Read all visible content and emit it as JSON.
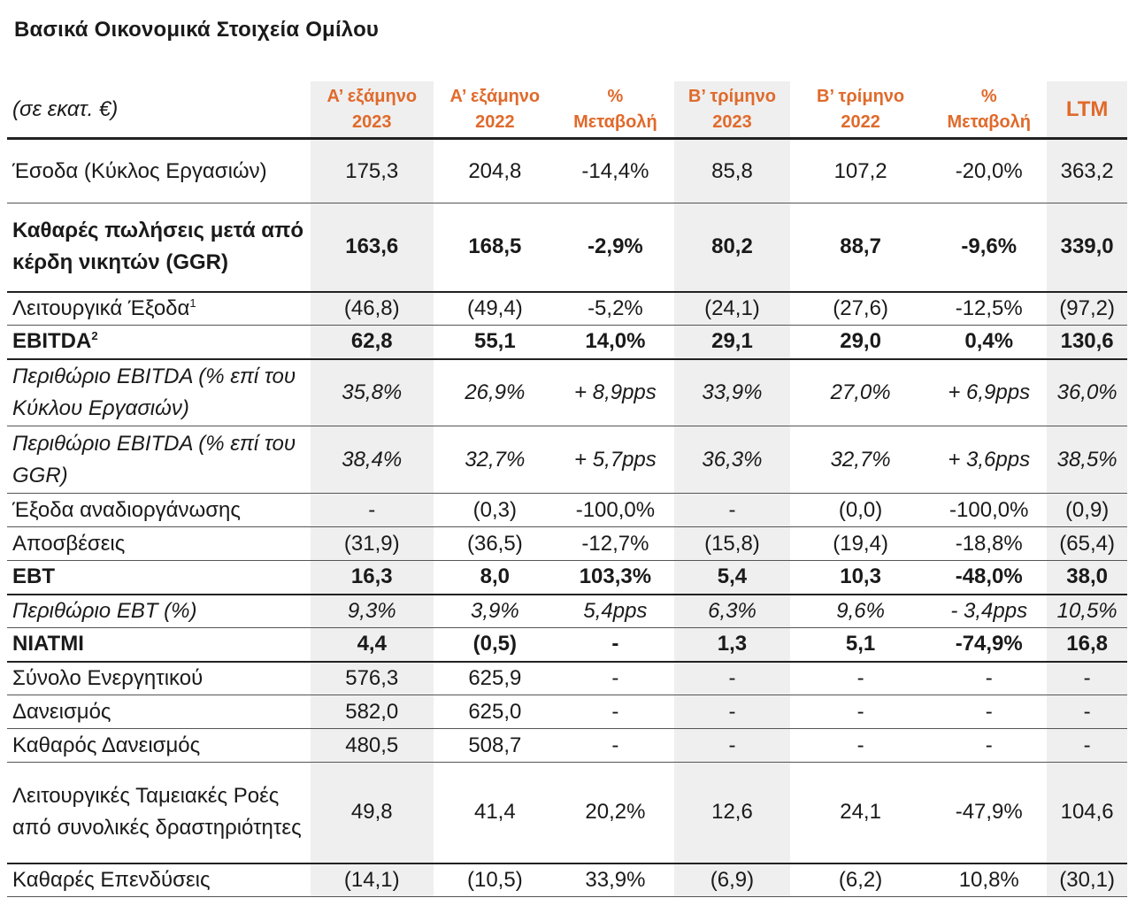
{
  "title": "Βασικά Οικονομικά Στοιχεία Ομίλου",
  "unit": "(σε εκατ. €)",
  "columns": [
    {
      "line1": "Α’ εξάμηνο",
      "line2": "2023"
    },
    {
      "line1": "Α’ εξάμηνο",
      "line2": "2022"
    },
    {
      "line1": "%",
      "line2": "Μεταβολή"
    },
    {
      "line1": "Β’ τρίμηνο",
      "line2": "2023"
    },
    {
      "line1": "Β’ τρίμηνο",
      "line2": "2022"
    },
    {
      "line1": "%",
      "line2": "Μεταβολή"
    },
    {
      "line1": "LTM",
      "line2": ""
    }
  ],
  "rows": [
    {
      "label": "Έσοδα (Κύκλος Εργασιών)",
      "sup": "",
      "style": "normal",
      "values": [
        "175,3",
        "204,8",
        "-14,4%",
        "85,8",
        "107,2",
        "-20,0%",
        "363,2"
      ]
    },
    {
      "label": "Καθαρές πωλήσεις μετά από κέρδη νικητών (GGR)",
      "sup": "",
      "style": "bold",
      "values": [
        "163,6",
        "168,5",
        "-2,9%",
        "80,2",
        "88,7",
        "-9,6%",
        "339,0"
      ]
    },
    {
      "label": "Λειτουργικά Έξοδα",
      "sup": "1",
      "style": "normal",
      "values": [
        "(46,8)",
        "(49,4)",
        "-5,2%",
        "(24,1)",
        "(27,6)",
        "-12,5%",
        "(97,2)"
      ]
    },
    {
      "label": "EBITDA",
      "sup": "2",
      "style": "bold",
      "values": [
        "62,8",
        "55,1",
        "14,0%",
        "29,1",
        "29,0",
        "0,4%",
        "130,6"
      ]
    },
    {
      "label": "Περιθώριο EBITDA (% επί του Κύκλου Εργασιών)",
      "sup": "",
      "style": "italic",
      "values": [
        "35,8%",
        "26,9%",
        "+ 8,9pps",
        "33,9%",
        "27,0%",
        "+ 6,9pps",
        "36,0%"
      ]
    },
    {
      "label": "Περιθώριο EBITDA (% επί του GGR)",
      "sup": "",
      "style": "italic",
      "values": [
        "38,4%",
        "32,7%",
        "+ 5,7pps",
        "36,3%",
        "32,7%",
        "+ 3,6pps",
        "38,5%"
      ]
    },
    {
      "label": "Έξοδα αναδιοργάνωσης",
      "sup": "",
      "style": "normal",
      "values": [
        "-",
        "(0,3)",
        "-100,0%",
        "-",
        "(0,0)",
        "-100,0%",
        "(0,9)"
      ]
    },
    {
      "label": "Αποσβέσεις",
      "sup": "",
      "style": "normal",
      "values": [
        "(31,9)",
        "(36,5)",
        "-12,7%",
        "(15,8)",
        "(19,4)",
        "-18,8%",
        "(65,4)"
      ]
    },
    {
      "label": "EBT",
      "sup": "",
      "style": "bold",
      "values": [
        "16,3",
        "8,0",
        "103,3%",
        "5,4",
        "10,3",
        "-48,0%",
        "38,0"
      ]
    },
    {
      "label": "Περιθώριο EBT (%)",
      "sup": "",
      "style": "italic",
      "values": [
        "9,3%",
        "3,9%",
        "5,4pps",
        "6,3%",
        "9,6%",
        "- 3,4pps",
        "10,5%"
      ]
    },
    {
      "label": "NIATMI",
      "sup": "",
      "style": "bold",
      "values": [
        "4,4",
        "(0,5)",
        "-",
        "1,3",
        "5,1",
        "-74,9%",
        "16,8"
      ]
    },
    {
      "label": "Σύνολο Ενεργητικού",
      "sup": "",
      "style": "normal",
      "values": [
        "576,3",
        "625,9",
        "-",
        "-",
        "-",
        "-",
        "-"
      ]
    },
    {
      "label": "Δανεισμός",
      "sup": "",
      "style": "normal",
      "values": [
        "582,0",
        "625,0",
        "-",
        "-",
        "-",
        "-",
        "-"
      ]
    },
    {
      "label": "Καθαρός Δανεισμός",
      "sup": "",
      "style": "normal",
      "values": [
        "480,5",
        "508,7",
        "-",
        "-",
        "-",
        "-",
        "-"
      ]
    },
    {
      "label": "Λειτουργικές Ταμειακές Ροές από συνολικές δραστηριότητες",
      "sup": "",
      "style": "normal",
      "values": [
        "49,8",
        "41,4",
        "20,2%",
        "12,6",
        "24,1",
        "-47,9%",
        "104,6"
      ]
    },
    {
      "label": "Καθαρές Επενδύσεις",
      "sup": "",
      "style": "normal",
      "values": [
        "(14,1)",
        "(10,5)",
        "33,9%",
        "(6,9)",
        "(6,2)",
        "10,8%",
        "(30,1)"
      ]
    }
  ]
}
